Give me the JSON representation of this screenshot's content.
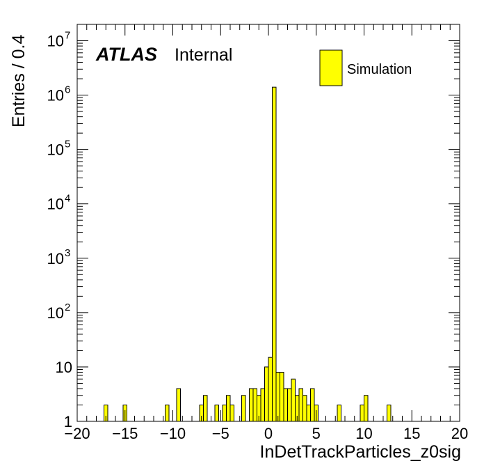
{
  "chart_data": {
    "type": "bar",
    "title": "",
    "xlabel": "InDetTrackParticles_z0sig",
    "ylabel": "Entries / 0.4",
    "xlim": [
      -20,
      20
    ],
    "ylim": [
      1,
      20000000
    ],
    "yscale": "log",
    "x_ticks": [
      "−20",
      "−15",
      "−10",
      "−5",
      "0",
      "5",
      "10",
      "15",
      "20"
    ],
    "y_ticks": [
      {
        "base": "1",
        "exp": ""
      },
      {
        "base": "10",
        "exp": ""
      },
      {
        "base": "10",
        "exp": "2"
      },
      {
        "base": "10",
        "exp": "3"
      },
      {
        "base": "10",
        "exp": "4"
      },
      {
        "base": "10",
        "exp": "5"
      },
      {
        "base": "10",
        "exp": "6"
      },
      {
        "base": "10",
        "exp": "7"
      }
    ],
    "bin_width": 0.4,
    "bins": [
      {
        "x": -20.0,
        "y": 1
      },
      {
        "x": -19.6,
        "y": 1
      },
      {
        "x": -18.8,
        "y": 1
      },
      {
        "x": -17.2,
        "y": 2
      },
      {
        "x": -16.8,
        "y": 1
      },
      {
        "x": -16.4,
        "y": 1
      },
      {
        "x": -15.6,
        "y": 1
      },
      {
        "x": -15.2,
        "y": 2
      },
      {
        "x": -14.0,
        "y": 1
      },
      {
        "x": -12.0,
        "y": 1
      },
      {
        "x": -11.6,
        "y": 1
      },
      {
        "x": -11.2,
        "y": 1
      },
      {
        "x": -10.8,
        "y": 2
      },
      {
        "x": -10.4,
        "y": 1
      },
      {
        "x": -9.6,
        "y": 4
      },
      {
        "x": -8.8,
        "y": 1
      },
      {
        "x": -8.0,
        "y": 1
      },
      {
        "x": -7.2,
        "y": 2
      },
      {
        "x": -6.8,
        "y": 3
      },
      {
        "x": -6.0,
        "y": 1
      },
      {
        "x": -5.6,
        "y": 2
      },
      {
        "x": -5.2,
        "y": 1
      },
      {
        "x": -4.8,
        "y": 2
      },
      {
        "x": -4.4,
        "y": 3
      },
      {
        "x": -4.0,
        "y": 2
      },
      {
        "x": -3.6,
        "y": 1
      },
      {
        "x": -3.2,
        "y": 1
      },
      {
        "x": -2.8,
        "y": 3
      },
      {
        "x": -2.4,
        "y": 1
      },
      {
        "x": -2.0,
        "y": 4
      },
      {
        "x": -1.6,
        "y": 4
      },
      {
        "x": -1.2,
        "y": 3
      },
      {
        "x": -0.8,
        "y": 4
      },
      {
        "x": -0.4,
        "y": 10
      },
      {
        "x": 0.0,
        "y": 15
      },
      {
        "x": 0.4,
        "y": 1400000
      },
      {
        "x": 0.8,
        "y": 8
      },
      {
        "x": 1.2,
        "y": 8
      },
      {
        "x": 1.6,
        "y": 4
      },
      {
        "x": 2.0,
        "y": 4
      },
      {
        "x": 2.4,
        "y": 6
      },
      {
        "x": 2.8,
        "y": 3
      },
      {
        "x": 3.2,
        "y": 4
      },
      {
        "x": 3.6,
        "y": 3
      },
      {
        "x": 4.0,
        "y": 2
      },
      {
        "x": 4.4,
        "y": 4
      },
      {
        "x": 4.8,
        "y": 2
      },
      {
        "x": 5.2,
        "y": 1
      },
      {
        "x": 6.4,
        "y": 1
      },
      {
        "x": 7.2,
        "y": 2
      },
      {
        "x": 7.6,
        "y": 1
      },
      {
        "x": 8.4,
        "y": 1
      },
      {
        "x": 9.2,
        "y": 1
      },
      {
        "x": 9.6,
        "y": 2
      },
      {
        "x": 10.0,
        "y": 3
      },
      {
        "x": 11.2,
        "y": 1
      },
      {
        "x": 11.6,
        "y": 1
      },
      {
        "x": 12.4,
        "y": 2
      },
      {
        "x": 14.0,
        "y": 1
      },
      {
        "x": 14.4,
        "y": 1
      },
      {
        "x": 16.0,
        "y": 1
      },
      {
        "x": 16.8,
        "y": 1
      }
    ],
    "legend": {
      "placement": "top-right",
      "entries": [
        {
          "name": "Simulation",
          "color": "#ffff00"
        }
      ]
    },
    "annotations": {
      "experiment": "ATLAS",
      "status": "Internal"
    },
    "colors": {
      "fill": "#ffff00",
      "line": "#000000"
    }
  }
}
